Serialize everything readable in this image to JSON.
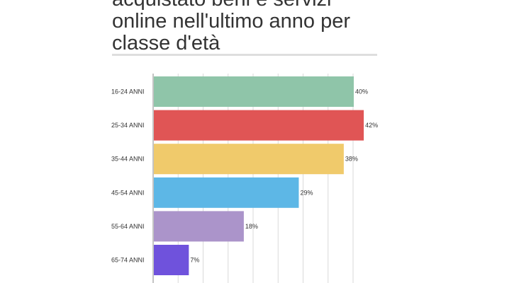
{
  "title": "acquistato beni e servizi online nell'ultimo anno per classe d'età",
  "chart_data": {
    "type": "bar",
    "orientation": "horizontal",
    "title": "acquistato beni e servizi online nell'ultimo anno per classe d'età",
    "categories": [
      "16-24 ANNI",
      "25-34 ANNI",
      "35-44 ANNI",
      "45-54 ANNI",
      "55-64 ANNI",
      "65-74 ANNI"
    ],
    "values": [
      40,
      42,
      38,
      29,
      18,
      7
    ],
    "value_labels": [
      "40%",
      "42%",
      "38%",
      "29%",
      "18%",
      "7%"
    ],
    "colors": [
      "#8fc5a9",
      "#e05555",
      "#f0ca6b",
      "#5db7e6",
      "#ab94ca",
      "#6f52dc"
    ],
    "xlim": [
      0,
      40
    ],
    "x_ticks": [
      0,
      5,
      10,
      15,
      20,
      25,
      30,
      35,
      40
    ],
    "grid": true
  }
}
